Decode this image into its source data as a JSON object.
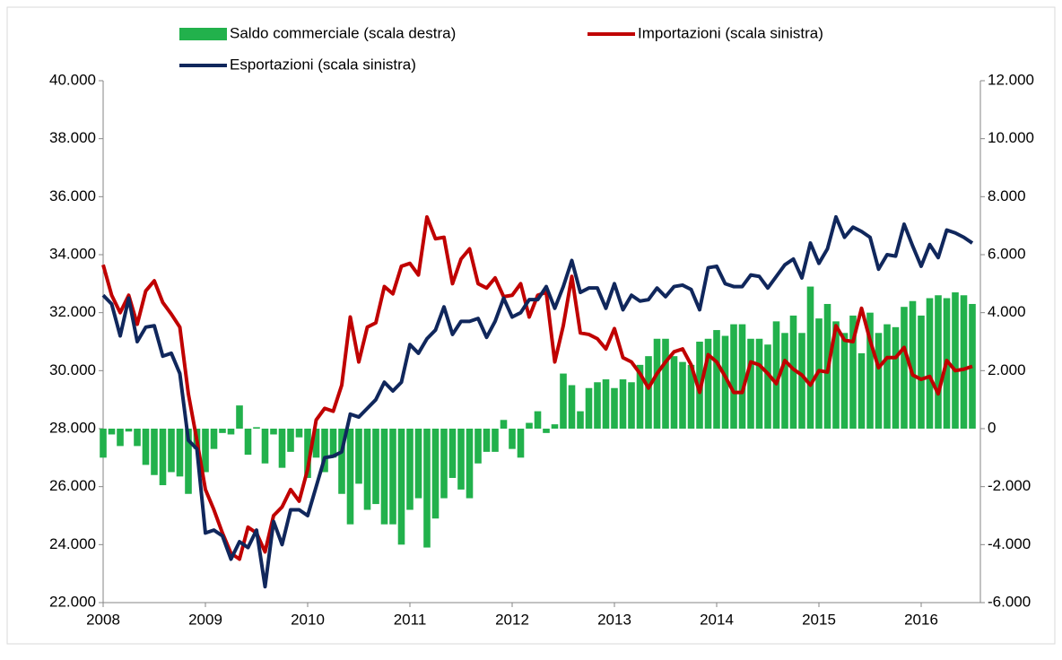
{
  "chart_data": {
    "type": "bar-line",
    "categories": [
      "2008",
      null,
      null,
      null,
      null,
      null,
      null,
      null,
      null,
      null,
      null,
      null,
      "2009",
      null,
      null,
      null,
      null,
      null,
      null,
      null,
      null,
      null,
      null,
      null,
      "2010",
      null,
      null,
      null,
      null,
      null,
      null,
      null,
      null,
      null,
      null,
      null,
      "2011",
      null,
      null,
      null,
      null,
      null,
      null,
      null,
      null,
      null,
      null,
      null,
      "2012",
      null,
      null,
      null,
      null,
      null,
      null,
      null,
      null,
      null,
      null,
      null,
      "2013",
      null,
      null,
      null,
      null,
      null,
      null,
      null,
      null,
      null,
      null,
      null,
      "2014",
      null,
      null,
      null,
      null,
      null,
      null,
      null,
      null,
      null,
      null,
      null,
      "2015",
      null,
      null,
      null,
      null,
      null,
      null,
      null,
      null,
      null,
      null,
      null,
      "2016",
      null,
      null,
      null,
      null,
      null,
      null
    ],
    "series": [
      {
        "name": "Saldo commerciale (scala destra)",
        "type": "bar",
        "axis": "y2",
        "color": "#22b14c",
        "values": [
          -1000,
          -200,
          -600,
          -100,
          -600,
          -1250,
          -1600,
          -1950,
          -1500,
          -1650,
          -2250,
          -700,
          -1500,
          -700,
          -150,
          -200,
          800,
          -900,
          50,
          -1200,
          -200,
          -1350,
          -800,
          -300,
          -1700,
          -1000,
          -1500,
          -1000,
          -2250,
          -3300,
          -1900,
          -2800,
          -2600,
          -3300,
          -3300,
          -4000,
          -2800,
          -2400,
          -4100,
          -3100,
          -2400,
          -1700,
          -2100,
          -2400,
          -1200,
          -800,
          -800,
          300,
          -700,
          -1000,
          200,
          600,
          -150,
          150,
          1900,
          1500,
          600,
          1400,
          1600,
          1700,
          1400,
          1700,
          1600,
          2200,
          2500,
          3100,
          3100,
          2500,
          2300,
          2200,
          3000,
          3100,
          3400,
          3200,
          3600,
          3600,
          3100,
          3100,
          2900,
          3700,
          3300,
          3900,
          3300,
          4900,
          3800,
          4300,
          3700,
          3300,
          3900,
          2600,
          4000,
          3300,
          3600,
          3500,
          4200,
          4400,
          3900,
          4500,
          4600,
          4500,
          4700,
          4600,
          4300
        ]
      },
      {
        "name": "Importazioni (scala sinistra)",
        "type": "line",
        "color": "#c00000",
        "values": [
          33650,
          32600,
          32000,
          32600,
          31600,
          32750,
          33100,
          32350,
          31950,
          31500,
          29200,
          27600,
          25900,
          25200,
          24400,
          23700,
          23500,
          24600,
          24400,
          23750,
          25000,
          25300,
          25900,
          25500,
          26600,
          28300,
          28700,
          28600,
          29500,
          31850,
          30300,
          31500,
          31650,
          32900,
          32650,
          33600,
          33700,
          33300,
          35300,
          34550,
          34600,
          33000,
          33850,
          34200,
          33000,
          32850,
          33200,
          32550,
          32600,
          33000,
          31850,
          32600,
          32700,
          30300,
          31550,
          33250,
          31300,
          31250,
          31100,
          30750,
          31450,
          30450,
          30300,
          29900,
          29400,
          29900,
          30300,
          30650,
          30750,
          30200,
          29250,
          30550,
          30300,
          29800,
          29250,
          29250,
          30300,
          30200,
          29900,
          29550,
          30350,
          30050,
          29850,
          29500,
          30000,
          29950,
          31550,
          31050,
          31000,
          32150,
          31050,
          30100,
          30450,
          30450,
          30800,
          29850,
          29700,
          29800,
          29200,
          30350,
          30000,
          30050,
          30150
        ]
      },
      {
        "name": "Esportazioni  (scala sinistra)",
        "type": "line",
        "color": "#10275c",
        "values": [
          32600,
          32300,
          31200,
          32500,
          31000,
          31500,
          31550,
          30500,
          30600,
          29900,
          27600,
          27300,
          24400,
          24500,
          24300,
          23500,
          24100,
          23900,
          24500,
          22550,
          24800,
          24000,
          25200,
          25200,
          25000,
          26000,
          27000,
          27050,
          27200,
          28500,
          28400,
          28700,
          29000,
          29600,
          29300,
          29600,
          30900,
          30600,
          31100,
          31400,
          32200,
          31250,
          31700,
          31700,
          31800,
          31150,
          31700,
          32500,
          31850,
          32000,
          32450,
          32450,
          32900,
          32150,
          32900,
          33800,
          32700,
          32850,
          32850,
          32150,
          33000,
          32100,
          32600,
          32400,
          32450,
          32850,
          32550,
          32900,
          32950,
          32800,
          32100,
          33550,
          33600,
          33000,
          32900,
          32900,
          33300,
          33250,
          32850,
          33250,
          33650,
          33850,
          33200,
          34400,
          33700,
          34200,
          35300,
          34600,
          34950,
          34800,
          34600,
          33500,
          34000,
          33950,
          35050,
          34300,
          33600,
          34350,
          33900,
          34850,
          34750,
          34600,
          34400
        ]
      }
    ],
    "ylim": [
      22000,
      40000
    ],
    "yticks": [
      {
        "value": 22000,
        "label": "22.000"
      },
      {
        "value": 24000,
        "label": "24.000"
      },
      {
        "value": 26000,
        "label": "26.000"
      },
      {
        "value": 28000,
        "label": "28.000"
      },
      {
        "value": 30000,
        "label": "30.000"
      },
      {
        "value": 32000,
        "label": "32.000"
      },
      {
        "value": 34000,
        "label": "34.000"
      },
      {
        "value": 36000,
        "label": "36.000"
      },
      {
        "value": 38000,
        "label": "38.000"
      },
      {
        "value": 40000,
        "label": "40.000"
      }
    ],
    "y2lim": [
      -6000,
      12000
    ],
    "y2ticks": [
      {
        "value": -6000,
        "label": "-6.000"
      },
      {
        "value": -4000,
        "label": "-4.000"
      },
      {
        "value": -2000,
        "label": "-2.000"
      },
      0,
      {
        "value": 2000,
        "label": "2.000"
      },
      {
        "value": 4000,
        "label": "4.000"
      },
      {
        "value": 6000,
        "label": "6.000"
      },
      {
        "value": 8000,
        "label": "8.000"
      },
      {
        "value": 10000,
        "label": "10.000"
      },
      {
        "value": 12000,
        "label": "12.000"
      }
    ],
    "grid": false,
    "legend": "top"
  }
}
